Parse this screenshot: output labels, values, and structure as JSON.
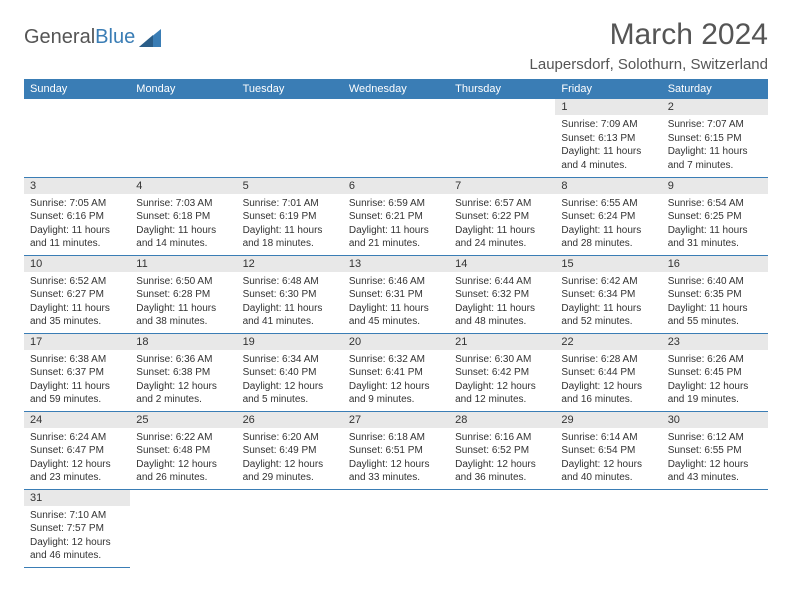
{
  "logo": {
    "part1": "General",
    "part2": "Blue"
  },
  "title": "March 2024",
  "location": "Laupersdorf, Solothurn, Switzerland",
  "columns": [
    "Sunday",
    "Monday",
    "Tuesday",
    "Wednesday",
    "Thursday",
    "Friday",
    "Saturday"
  ],
  "colors": {
    "header_bg": "#3a7db5",
    "header_text": "#ffffff",
    "daynum_bg": "#e8e8e8",
    "body_text": "#333333",
    "row_border": "#3a7db5",
    "logo_gray": "#555555",
    "logo_blue": "#3a7db5",
    "page_bg": "#ffffff"
  },
  "weeks": [
    [
      null,
      null,
      null,
      null,
      null,
      {
        "n": "1",
        "sr": "7:09 AM",
        "ss": "6:13 PM",
        "dl": "11 hours and 4 minutes."
      },
      {
        "n": "2",
        "sr": "7:07 AM",
        "ss": "6:15 PM",
        "dl": "11 hours and 7 minutes."
      }
    ],
    [
      {
        "n": "3",
        "sr": "7:05 AM",
        "ss": "6:16 PM",
        "dl": "11 hours and 11 minutes."
      },
      {
        "n": "4",
        "sr": "7:03 AM",
        "ss": "6:18 PM",
        "dl": "11 hours and 14 minutes."
      },
      {
        "n": "5",
        "sr": "7:01 AM",
        "ss": "6:19 PM",
        "dl": "11 hours and 18 minutes."
      },
      {
        "n": "6",
        "sr": "6:59 AM",
        "ss": "6:21 PM",
        "dl": "11 hours and 21 minutes."
      },
      {
        "n": "7",
        "sr": "6:57 AM",
        "ss": "6:22 PM",
        "dl": "11 hours and 24 minutes."
      },
      {
        "n": "8",
        "sr": "6:55 AM",
        "ss": "6:24 PM",
        "dl": "11 hours and 28 minutes."
      },
      {
        "n": "9",
        "sr": "6:54 AM",
        "ss": "6:25 PM",
        "dl": "11 hours and 31 minutes."
      }
    ],
    [
      {
        "n": "10",
        "sr": "6:52 AM",
        "ss": "6:27 PM",
        "dl": "11 hours and 35 minutes."
      },
      {
        "n": "11",
        "sr": "6:50 AM",
        "ss": "6:28 PM",
        "dl": "11 hours and 38 minutes."
      },
      {
        "n": "12",
        "sr": "6:48 AM",
        "ss": "6:30 PM",
        "dl": "11 hours and 41 minutes."
      },
      {
        "n": "13",
        "sr": "6:46 AM",
        "ss": "6:31 PM",
        "dl": "11 hours and 45 minutes."
      },
      {
        "n": "14",
        "sr": "6:44 AM",
        "ss": "6:32 PM",
        "dl": "11 hours and 48 minutes."
      },
      {
        "n": "15",
        "sr": "6:42 AM",
        "ss": "6:34 PM",
        "dl": "11 hours and 52 minutes."
      },
      {
        "n": "16",
        "sr": "6:40 AM",
        "ss": "6:35 PM",
        "dl": "11 hours and 55 minutes."
      }
    ],
    [
      {
        "n": "17",
        "sr": "6:38 AM",
        "ss": "6:37 PM",
        "dl": "11 hours and 59 minutes."
      },
      {
        "n": "18",
        "sr": "6:36 AM",
        "ss": "6:38 PM",
        "dl": "12 hours and 2 minutes."
      },
      {
        "n": "19",
        "sr": "6:34 AM",
        "ss": "6:40 PM",
        "dl": "12 hours and 5 minutes."
      },
      {
        "n": "20",
        "sr": "6:32 AM",
        "ss": "6:41 PM",
        "dl": "12 hours and 9 minutes."
      },
      {
        "n": "21",
        "sr": "6:30 AM",
        "ss": "6:42 PM",
        "dl": "12 hours and 12 minutes."
      },
      {
        "n": "22",
        "sr": "6:28 AM",
        "ss": "6:44 PM",
        "dl": "12 hours and 16 minutes."
      },
      {
        "n": "23",
        "sr": "6:26 AM",
        "ss": "6:45 PM",
        "dl": "12 hours and 19 minutes."
      }
    ],
    [
      {
        "n": "24",
        "sr": "6:24 AM",
        "ss": "6:47 PM",
        "dl": "12 hours and 23 minutes."
      },
      {
        "n": "25",
        "sr": "6:22 AM",
        "ss": "6:48 PM",
        "dl": "12 hours and 26 minutes."
      },
      {
        "n": "26",
        "sr": "6:20 AM",
        "ss": "6:49 PM",
        "dl": "12 hours and 29 minutes."
      },
      {
        "n": "27",
        "sr": "6:18 AM",
        "ss": "6:51 PM",
        "dl": "12 hours and 33 minutes."
      },
      {
        "n": "28",
        "sr": "6:16 AM",
        "ss": "6:52 PM",
        "dl": "12 hours and 36 minutes."
      },
      {
        "n": "29",
        "sr": "6:14 AM",
        "ss": "6:54 PM",
        "dl": "12 hours and 40 minutes."
      },
      {
        "n": "30",
        "sr": "6:12 AM",
        "ss": "6:55 PM",
        "dl": "12 hours and 43 minutes."
      }
    ],
    [
      {
        "n": "31",
        "sr": "7:10 AM",
        "ss": "7:57 PM",
        "dl": "12 hours and 46 minutes."
      },
      null,
      null,
      null,
      null,
      null,
      null
    ]
  ],
  "labels": {
    "sunrise": "Sunrise: ",
    "sunset": "Sunset: ",
    "daylight": "Daylight: "
  }
}
